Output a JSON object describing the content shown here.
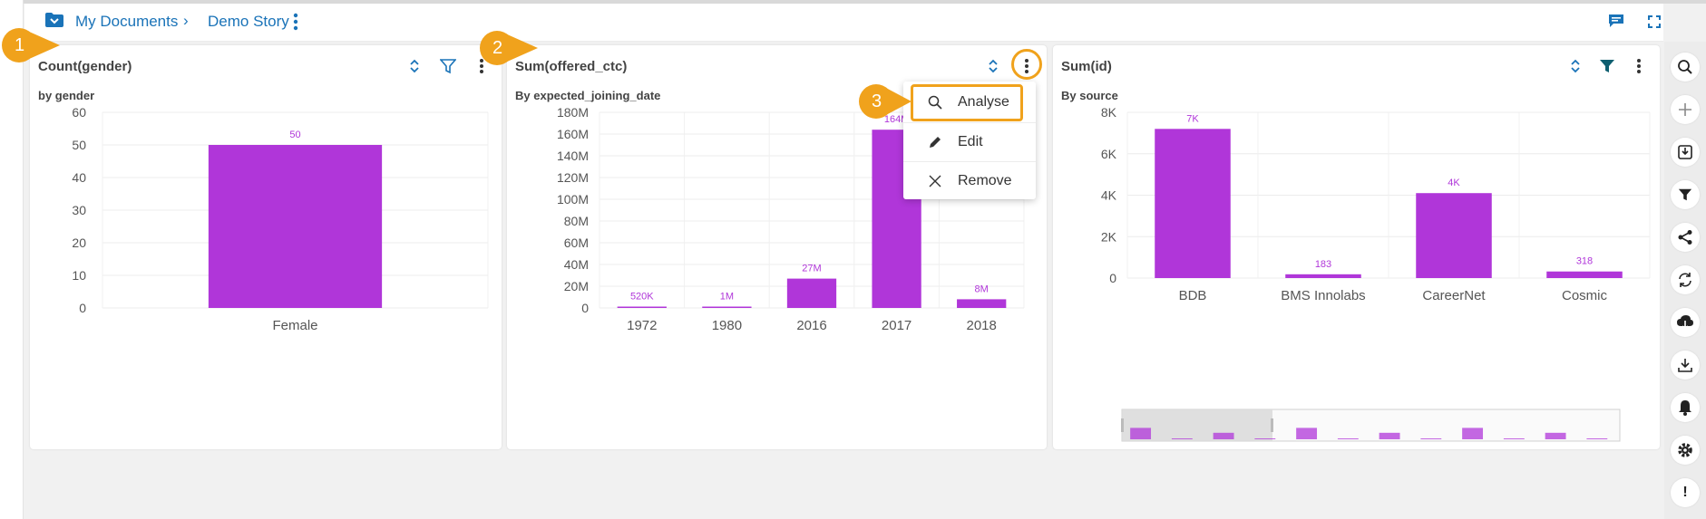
{
  "breadcrumb": {
    "root": "My Documents",
    "separator": "›",
    "current": "Demo Story"
  },
  "cards": [
    {
      "title": "Count(gender)",
      "subtitle": "by gender",
      "chart_data": {
        "type": "bar",
        "categories": [
          "Female"
        ],
        "values": [
          50
        ],
        "labels": [
          "50"
        ],
        "yticks": [
          "60",
          "50",
          "40",
          "30",
          "20",
          "10",
          "0"
        ],
        "ylim": [
          0,
          60
        ],
        "color": "#b036d9"
      }
    },
    {
      "title": "Sum(offered_ctc)",
      "subtitle": "By expected_joining_date",
      "chart_data": {
        "type": "bar",
        "categories": [
          "1972",
          "1980",
          "2016",
          "2017",
          "2018"
        ],
        "values": [
          520000,
          1000000,
          27000000,
          164000000,
          8000000
        ],
        "labels": [
          "520K",
          "1M",
          "27M",
          "164M",
          "8M"
        ],
        "yticks": [
          "180M",
          "160M",
          "140M",
          "120M",
          "100M",
          "80M",
          "60M",
          "40M",
          "20M",
          "0"
        ],
        "ylim": [
          0,
          180000000
        ],
        "color": "#b036d9"
      }
    },
    {
      "title": "Sum(id)",
      "subtitle": "By source",
      "chart_data": {
        "type": "bar",
        "categories": [
          "BDB",
          "BMS Innolabs",
          "CareerNet",
          "Cosmic"
        ],
        "values": [
          7200,
          183,
          4100,
          318
        ],
        "labels": [
          "7K",
          "183",
          "4K",
          "318"
        ],
        "yticks": [
          "8K",
          "6K",
          "4K",
          "2K",
          "0"
        ],
        "ylim": [
          0,
          8000
        ],
        "color": "#b036d9"
      }
    }
  ],
  "context_menu": {
    "items": [
      "Analyse",
      "Edit",
      "Remove"
    ]
  },
  "steps": [
    "1",
    "2",
    "3"
  ],
  "sidebar": {
    "last_label": "!"
  },
  "colors": {
    "accent": "#b036d9",
    "link": "#1a73b8",
    "callout": "#f0a21c",
    "sidebar_icon": "#222222"
  }
}
